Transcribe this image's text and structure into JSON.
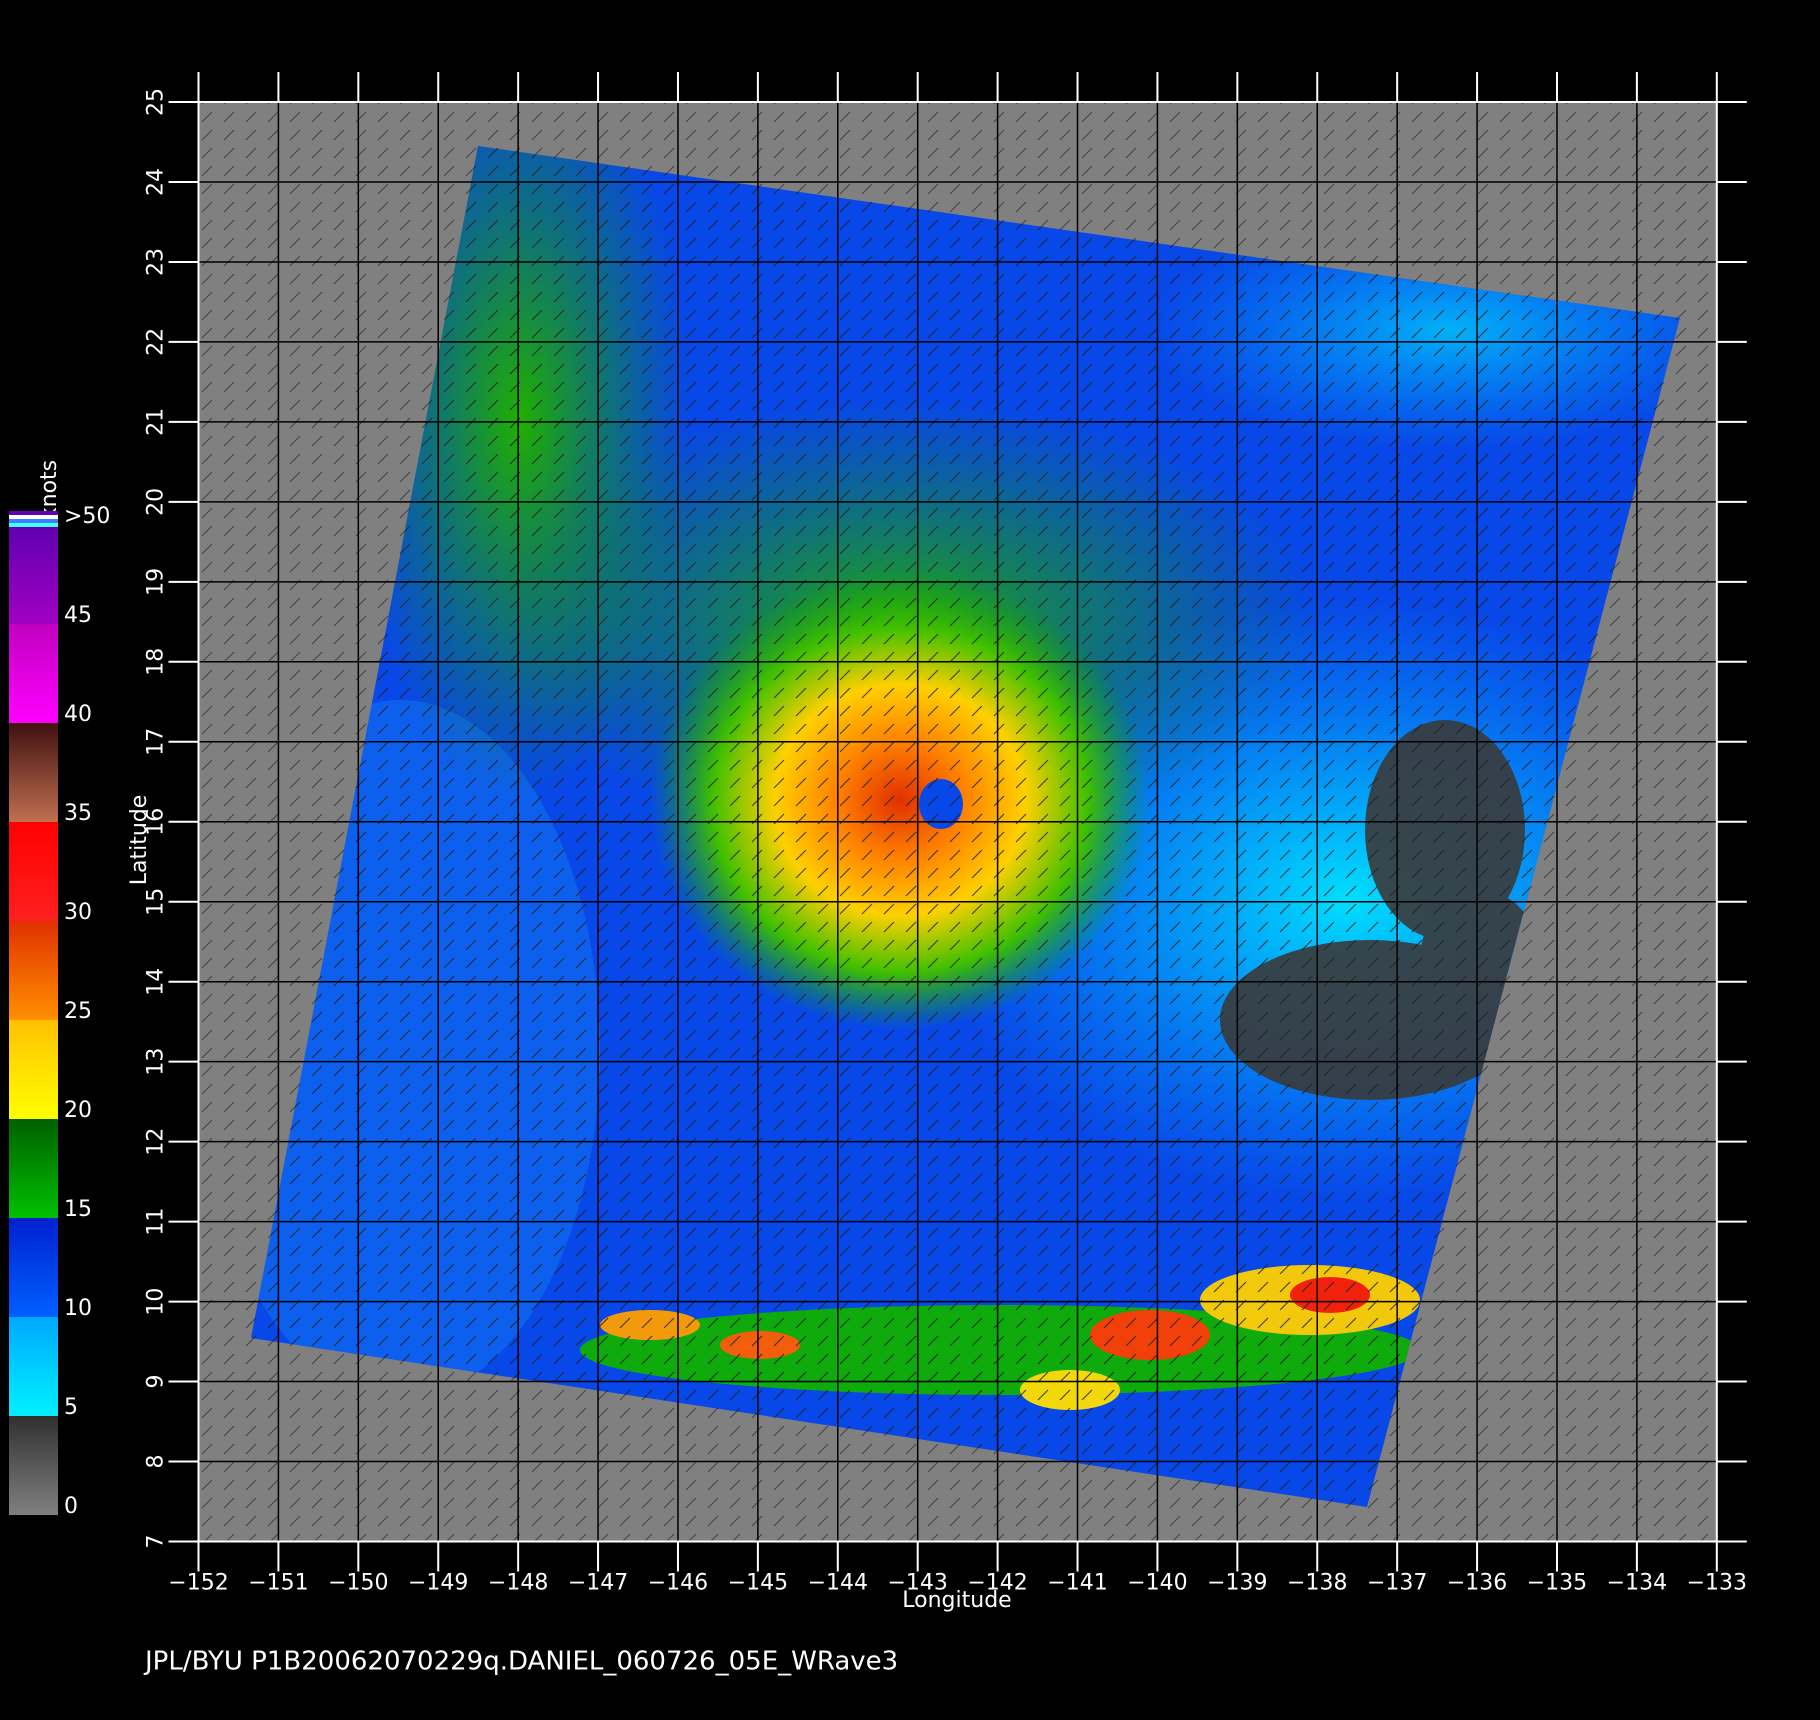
{
  "chart_data": {
    "type": "wind-map",
    "x_label": "Longitude",
    "y_label": "Latitude",
    "footer": "JPL/BYU  P1B20062070229q.DANIEL_060726_05E_WRave3",
    "xlim": [
      -152,
      -133
    ],
    "xticks": [
      {
        "value": -152,
        "label": "−152"
      },
      {
        "value": -151,
        "label": "−151"
      },
      {
        "value": -150,
        "label": "−150"
      },
      {
        "value": -149,
        "label": "−149"
      },
      {
        "value": -148,
        "label": "−148"
      },
      {
        "value": -147,
        "label": "−147"
      },
      {
        "value": -146,
        "label": "−146"
      },
      {
        "value": -145,
        "label": "−145"
      },
      {
        "value": -144,
        "label": "−144"
      },
      {
        "value": -143,
        "label": "−143"
      },
      {
        "value": -142,
        "label": "−142"
      },
      {
        "value": -141,
        "label": "−141"
      },
      {
        "value": -140,
        "label": "−140"
      },
      {
        "value": -139,
        "label": "−139"
      },
      {
        "value": -138,
        "label": "−138"
      },
      {
        "value": -137,
        "label": "−137"
      },
      {
        "value": -136,
        "label": "−136"
      },
      {
        "value": -135,
        "label": "−135"
      },
      {
        "value": -134,
        "label": "−134"
      },
      {
        "value": -133,
        "label": "−133"
      }
    ],
    "ylim": [
      7,
      25
    ],
    "yticks": [
      7,
      8,
      9,
      10,
      11,
      12,
      13,
      14,
      15,
      16,
      17,
      18,
      19,
      20,
      21,
      22,
      23,
      24,
      25
    ],
    "grid": true,
    "colorbar": {
      "label": "knots",
      "lim": [
        0,
        50
      ],
      "ticks": [
        0,
        5,
        10,
        15,
        20,
        25,
        30,
        35,
        40,
        45,
        {
          "value": 50,
          "label": ">50"
        }
      ],
      "colors": [
        [
          "#808080",
          "#303030"
        ],
        [
          "#00f0ff",
          "#00a8ff"
        ],
        [
          "#0060ff",
          "#0020d0"
        ],
        [
          "#00c000",
          "#006000"
        ],
        [
          "#ffff00",
          "#ffc000"
        ],
        [
          "#ff9000",
          "#e03000"
        ],
        [
          "#ff2020",
          "#ff0000"
        ],
        [
          "#c07050",
          "#401010"
        ],
        [
          "#ff00ff",
          "#c000c0"
        ],
        [
          "#a000c0",
          "#6000b0"
        ]
      ]
    }
  }
}
